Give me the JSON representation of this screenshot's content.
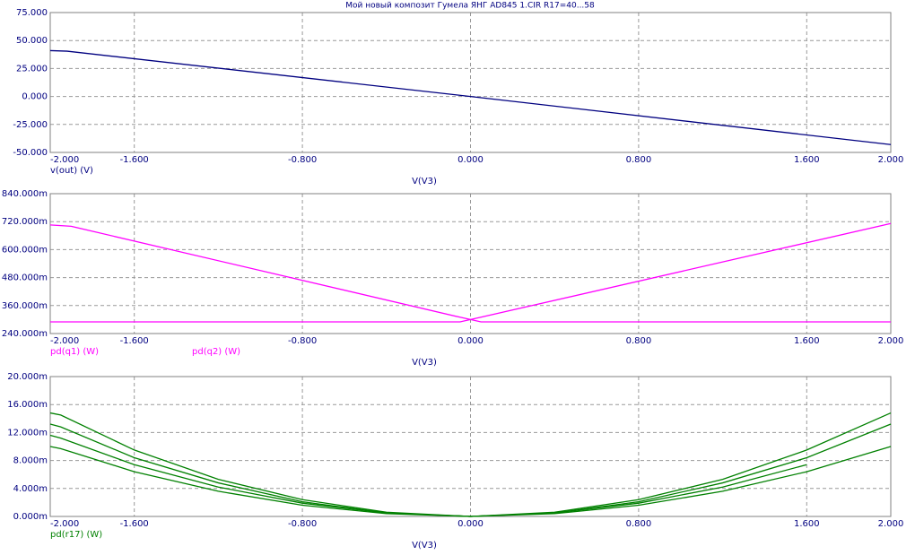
{
  "chart_data": [
    {
      "type": "line",
      "title": "Мой новый композит Гумела ЯНГ AD845 1.CIR R17=40...58",
      "x_label": "V(V3)",
      "x": [
        -2,
        -1.92,
        0,
        2
      ],
      "series": [
        {
          "name": "v(out) (V)",
          "color": "#000080",
          "values": [
            41,
            40.5,
            0,
            -43
          ]
        }
      ],
      "xlim": [
        -2,
        2
      ],
      "xticks": [
        {
          "value": -2,
          "label": "-2.000"
        },
        {
          "value": -1.6,
          "label": "-1.600"
        },
        {
          "value": -0.8,
          "label": "-0.800"
        },
        {
          "value": 0,
          "label": "0.000"
        },
        {
          "value": 0.8,
          "label": "0.800"
        },
        {
          "value": 1.6,
          "label": "1.600"
        },
        {
          "value": 2,
          "label": "2.000"
        }
      ],
      "ylim": [
        -50,
        75
      ],
      "yticks": [
        {
          "value": -50,
          "label": "-50.000"
        },
        {
          "value": -25,
          "label": "-25.000"
        },
        {
          "value": 0,
          "label": "0.000"
        },
        {
          "value": 25,
          "label": "25.000"
        },
        {
          "value": 50,
          "label": "50.000"
        },
        {
          "value": 75,
          "label": "75.000"
        }
      ],
      "grid": true
    },
    {
      "type": "line",
      "x_label": "V(V3)",
      "x": [
        -2,
        -1.9,
        -0.05,
        0.05,
        2
      ],
      "series": [
        {
          "name": "pd(q1) (W)",
          "color": "#ff00ff",
          "values": [
            0.706,
            0.7,
            0.31,
            0.29,
            0.29
          ]
        },
        {
          "name": "pd(q2) (W)",
          "color": "#ff00ff",
          "values": [
            0.29,
            0.29,
            0.29,
            0.31,
            0.712
          ]
        }
      ],
      "xlim": [
        -2,
        2
      ],
      "xticks": [
        {
          "value": -2,
          "label": "-2.000"
        },
        {
          "value": -1.6,
          "label": "-1.600"
        },
        {
          "value": -0.8,
          "label": "-0.800"
        },
        {
          "value": 0,
          "label": "0.000"
        },
        {
          "value": 0.8,
          "label": "0.800"
        },
        {
          "value": 1.6,
          "label": "1.600"
        },
        {
          "value": 2,
          "label": "2.000"
        }
      ],
      "ylim": [
        0.24,
        0.84
      ],
      "yticks": [
        {
          "value": 0.24,
          "label": "240.000m"
        },
        {
          "value": 0.36,
          "label": "360.000m"
        },
        {
          "value": 0.48,
          "label": "480.000m"
        },
        {
          "value": 0.6,
          "label": "600.000m"
        },
        {
          "value": 0.72,
          "label": "720.000m"
        },
        {
          "value": 0.84,
          "label": "840.000m"
        }
      ],
      "grid": true
    },
    {
      "type": "line",
      "x_label": "V(V3)",
      "x": [
        -2,
        -1.95,
        -1.6,
        -1.2,
        -0.8,
        -0.4,
        0,
        0.4,
        0.8,
        1.2,
        1.6,
        2
      ],
      "series": [
        {
          "name": "pd(r17) (W)",
          "color": "#008000",
          "values": [
            0.0148,
            0.0145,
            0.0095,
            0.0053,
            0.0024,
            0.0006,
            0,
            0.0006,
            0.0024,
            0.0053,
            0.0095,
            0.0148
          ]
        },
        {
          "color": "#008000",
          "values": [
            0.0132,
            0.0128,
            0.0084,
            0.0048,
            0.0021,
            0.0005,
            0,
            0.0005,
            0.0021,
            0.0048,
            0.0084,
            0.0132
          ]
        },
        {
          "color": "#008000",
          "values": [
            0.0116,
            0.0112,
            0.0074,
            0.0042,
            0.0019,
            0.0005,
            0,
            0.0005,
            0.0019,
            0.0042,
            0.0074,
            null
          ]
        },
        {
          "color": "#008000",
          "values": [
            0.01,
            0.0097,
            0.0064,
            0.0036,
            0.0016,
            0.0004,
            0,
            0.0004,
            0.0016,
            0.0036,
            0.0064,
            0.01
          ]
        }
      ],
      "xlim": [
        -2,
        2
      ],
      "xticks": [
        {
          "value": -2,
          "label": "-2.000"
        },
        {
          "value": -1.6,
          "label": "-1.600"
        },
        {
          "value": -0.8,
          "label": "-0.800"
        },
        {
          "value": 0,
          "label": "0.000"
        },
        {
          "value": 0.8,
          "label": "0.800"
        },
        {
          "value": 1.6,
          "label": "1.600"
        },
        {
          "value": 2,
          "label": "2.000"
        }
      ],
      "ylim": [
        0,
        0.02
      ],
      "yticks": [
        {
          "value": 0,
          "label": "0.000m"
        },
        {
          "value": 0.004,
          "label": "4.000m"
        },
        {
          "value": 0.008,
          "label": "8.000m"
        },
        {
          "value": 0.012,
          "label": "12.000m"
        },
        {
          "value": 0.016,
          "label": "16.000m"
        },
        {
          "value": 0.02,
          "label": "20.000m"
        }
      ],
      "grid": true
    }
  ]
}
